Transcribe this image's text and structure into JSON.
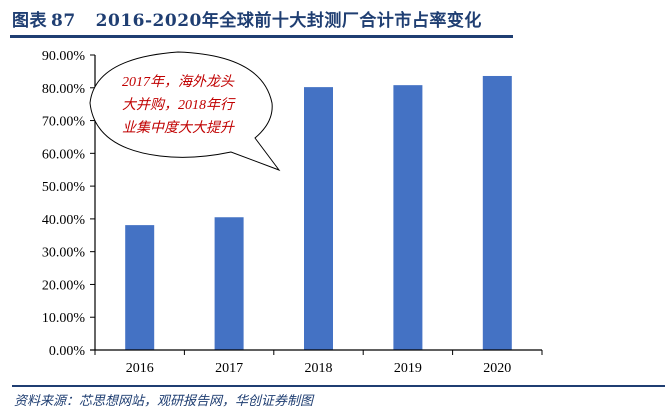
{
  "header": {
    "label": "图表",
    "number": "87",
    "title": "2016-2020年全球前十大封测厂合计市占率变化"
  },
  "source": "资料来源：芯思想网站，观研报告网，华创证券制图",
  "annotation": {
    "lines": [
      "2017年，海外龙头",
      "大并购，2018年行",
      "业集中度大大提升"
    ],
    "color": "#c00000"
  },
  "colors": {
    "bar": "#4472C4",
    "title": "#1f3e72",
    "axis": "#000000"
  },
  "chart_data": {
    "type": "bar",
    "title": "2016-2020年全球前十大封测厂合计市占率变化",
    "categories": [
      "2016",
      "2017",
      "2018",
      "2019",
      "2020"
    ],
    "values": [
      38.1,
      40.5,
      80.2,
      80.8,
      83.6
    ],
    "value_format": "percent",
    "xlabel": "",
    "ylabel": "",
    "ylim": [
      0,
      90
    ],
    "yticks": [
      "0.00%",
      "10.00%",
      "20.00%",
      "30.00%",
      "40.00%",
      "50.00%",
      "60.00%",
      "70.00%",
      "80.00%",
      "90.00%"
    ],
    "grid": false,
    "legend": "none",
    "annotations": [
      "2017年，海外龙头大并购，2018年行业集中度大大提升"
    ]
  }
}
